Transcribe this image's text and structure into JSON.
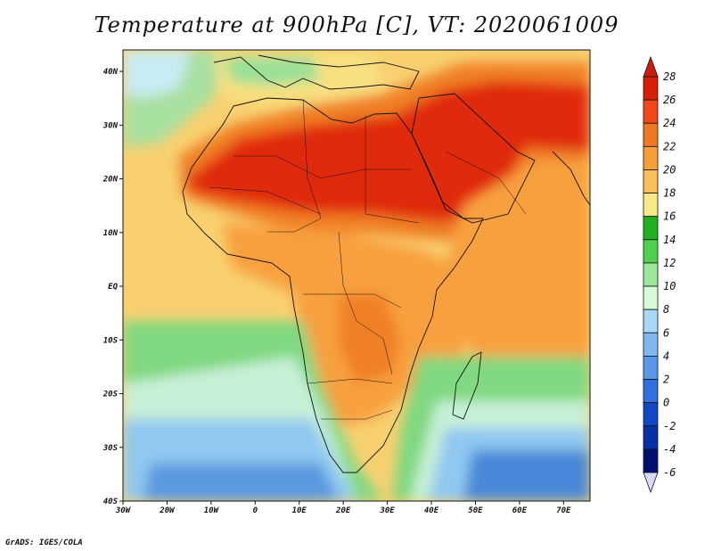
{
  "title": "Temperature at 900hPa [C], VT: 2020061009",
  "credit": "GrADS: IGES/COLA",
  "map": {
    "projection": "latlon",
    "lon_range": [
      -30,
      76
    ],
    "lat_range": [
      -40,
      44
    ],
    "lat_ticks": [
      {
        "value": 40,
        "label": "40N"
      },
      {
        "value": 30,
        "label": "30N"
      },
      {
        "value": 20,
        "label": "20N"
      },
      {
        "value": 10,
        "label": "10N"
      },
      {
        "value": 0,
        "label": "EQ"
      },
      {
        "value": -10,
        "label": "10S"
      },
      {
        "value": -20,
        "label": "20S"
      },
      {
        "value": -30,
        "label": "30S"
      },
      {
        "value": -40,
        "label": "40S"
      }
    ],
    "lon_ticks": [
      {
        "value": -30,
        "label": "30W"
      },
      {
        "value": -20,
        "label": "20W"
      },
      {
        "value": -10,
        "label": "10W"
      },
      {
        "value": 0,
        "label": "0"
      },
      {
        "value": 10,
        "label": "10E"
      },
      {
        "value": 20,
        "label": "20E"
      },
      {
        "value": 30,
        "label": "30E"
      },
      {
        "value": 40,
        "label": "40E"
      },
      {
        "value": 50,
        "label": "50E"
      },
      {
        "value": 60,
        "label": "60E"
      },
      {
        "value": 70,
        "label": "70E"
      }
    ]
  },
  "colorbar": {
    "levels": [
      "28",
      "26",
      "24",
      "22",
      "20",
      "18",
      "16",
      "14",
      "12",
      "10",
      "8",
      "6",
      "4",
      "2",
      "0",
      "-2",
      "-4",
      "-6"
    ],
    "colors": [
      "#d82008",
      "#f04818",
      "#f07820",
      "#f8a038",
      "#f8c058",
      "#f8e888",
      "#20b020",
      "#50d050",
      "#98e898",
      "#d8f8d8",
      "#a8d8f8",
      "#80b8f0",
      "#5898e8",
      "#3070e0",
      "#1048c8",
      "#0830a8",
      "#001070"
    ],
    "arrow_top_color": "#c82010",
    "arrow_bottom_color": "#d8d8f8"
  }
}
